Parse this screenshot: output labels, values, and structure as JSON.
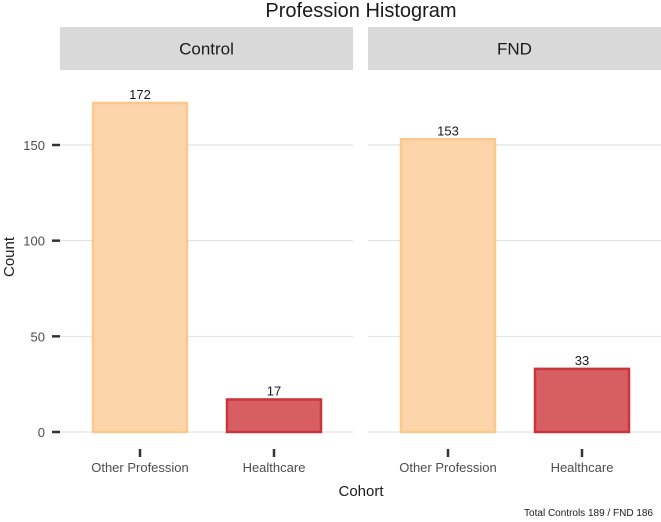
{
  "chart_data": {
    "type": "bar",
    "title": "Profession Histogram",
    "xlabel": "Cohort",
    "ylabel": "Count",
    "caption": "Total Controls 189 / FND 186",
    "categories": [
      "Other Profession",
      "Healthcare"
    ],
    "ylim": [
      0,
      180
    ],
    "yticks": [
      0,
      50,
      100,
      150
    ],
    "grid": true,
    "facets": [
      {
        "name": "Control",
        "values": [
          172,
          17
        ]
      },
      {
        "name": "FND",
        "values": [
          153,
          33
        ]
      }
    ],
    "colors": {
      "Other Profession": {
        "fill": "#fdd5ab",
        "stroke": "#fbc98e"
      },
      "Healthcare": {
        "fill": "#d75f62",
        "stroke": "#c9353a"
      }
    },
    "strip_color": "#d9d9d9",
    "gridline_color": "#dedede"
  }
}
